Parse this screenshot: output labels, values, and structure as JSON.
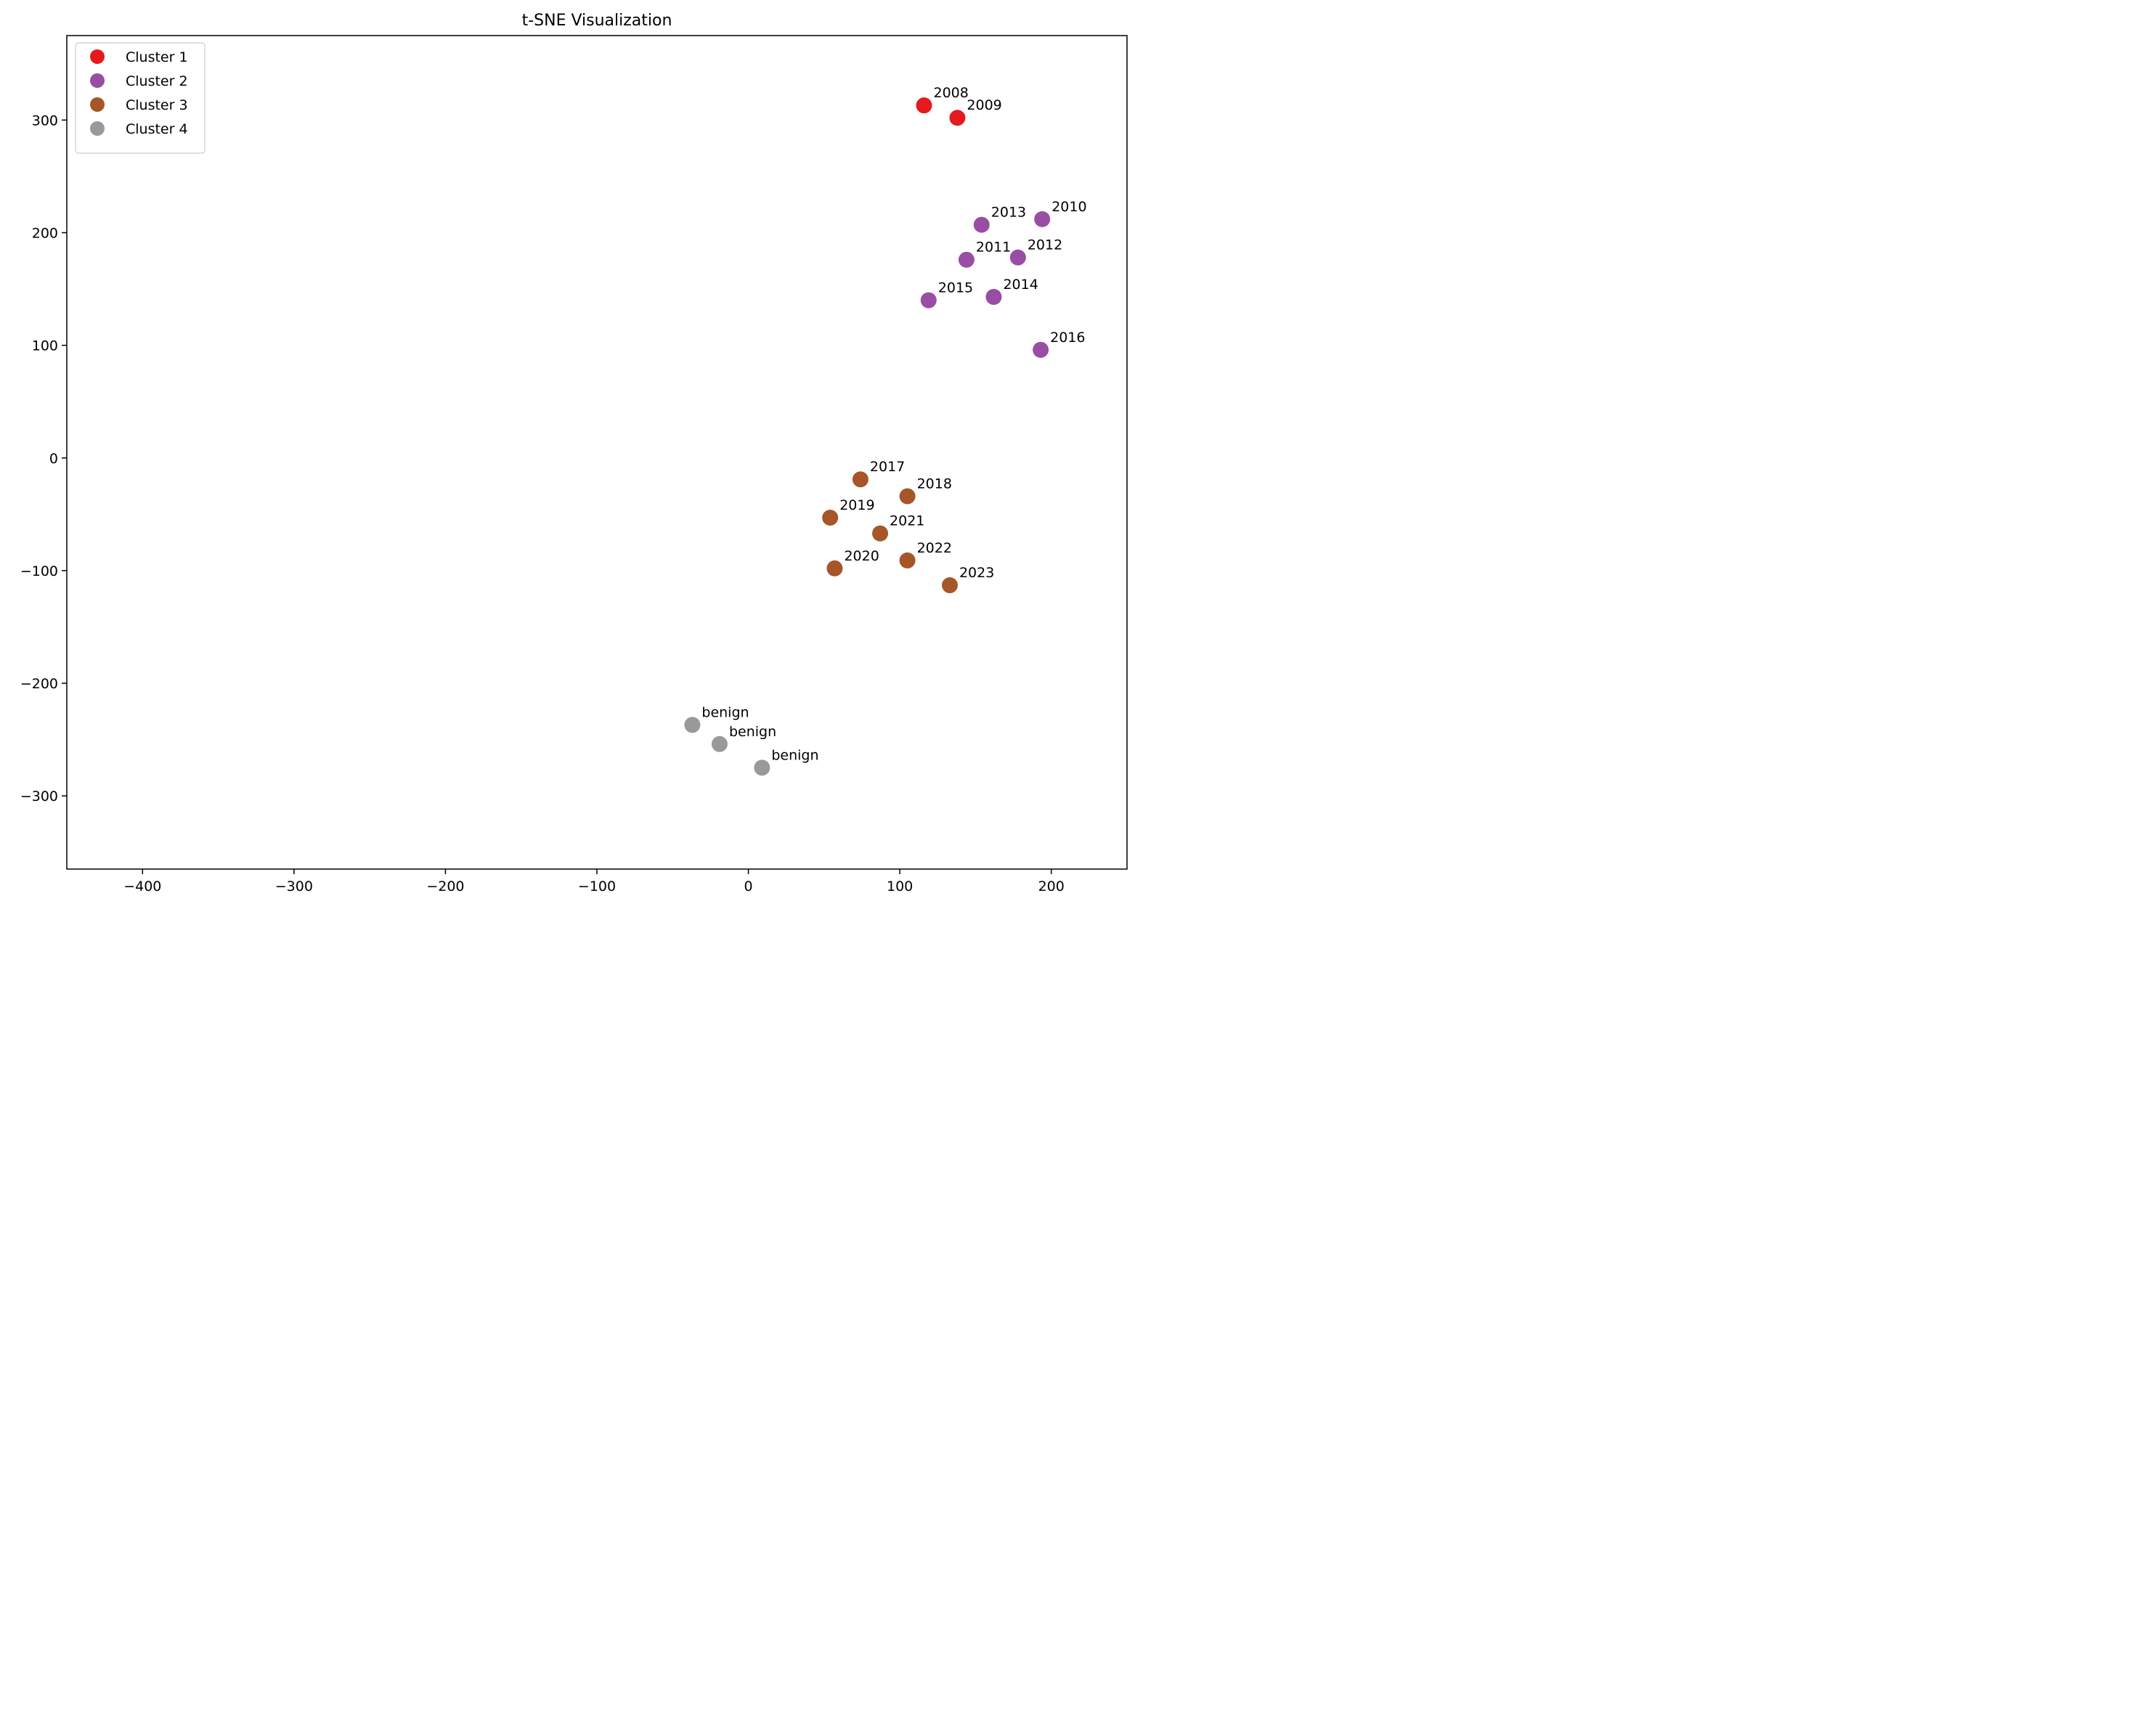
{
  "chart_data": {
    "type": "scatter",
    "title": "t-SNE Visualization",
    "xlabel": "",
    "ylabel": "",
    "xlim": [
      -450,
      250
    ],
    "ylim": [
      -365,
      375
    ],
    "xticks": [
      -400,
      -300,
      -200,
      -100,
      0,
      100,
      200
    ],
    "yticks": [
      -300,
      -200,
      -100,
      0,
      100,
      200,
      300
    ],
    "xtick_labels": [
      "−400",
      "−300",
      "−200",
      "−100",
      "0",
      "100",
      "200"
    ],
    "ytick_labels": [
      "−300",
      "−200",
      "−100",
      "0",
      "100",
      "200",
      "300"
    ],
    "grid": false,
    "legend_position": "top-left",
    "series": [
      {
        "name": "Cluster 1",
        "color": "#e41a1c",
        "points": [
          {
            "x": 116,
            "y": 313,
            "label": "2008"
          },
          {
            "x": 138,
            "y": 302,
            "label": "2009"
          }
        ]
      },
      {
        "name": "Cluster 2",
        "color": "#984ea3",
        "points": [
          {
            "x": 194,
            "y": 212,
            "label": "2010"
          },
          {
            "x": 144,
            "y": 176,
            "label": "2011"
          },
          {
            "x": 178,
            "y": 178,
            "label": "2012"
          },
          {
            "x": 154,
            "y": 207,
            "label": "2013"
          },
          {
            "x": 162,
            "y": 143,
            "label": "2014"
          },
          {
            "x": 119,
            "y": 140,
            "label": "2015"
          },
          {
            "x": 193,
            "y": 96,
            "label": "2016"
          }
        ]
      },
      {
        "name": "Cluster 3",
        "color": "#a65628",
        "points": [
          {
            "x": 74,
            "y": -19,
            "label": "2017"
          },
          {
            "x": 105,
            "y": -34,
            "label": "2018"
          },
          {
            "x": 54,
            "y": -53,
            "label": "2019"
          },
          {
            "x": 57,
            "y": -98,
            "label": "2020"
          },
          {
            "x": 87,
            "y": -67,
            "label": "2021"
          },
          {
            "x": 105,
            "y": -91,
            "label": "2022"
          },
          {
            "x": 133,
            "y": -113,
            "label": "2023"
          }
        ]
      },
      {
        "name": "Cluster 4",
        "color": "#999999",
        "points": [
          {
            "x": -37,
            "y": -237,
            "label": "benign"
          },
          {
            "x": -19,
            "y": -254,
            "label": "benign"
          },
          {
            "x": 9,
            "y": -275,
            "label": "benign"
          }
        ]
      }
    ]
  }
}
